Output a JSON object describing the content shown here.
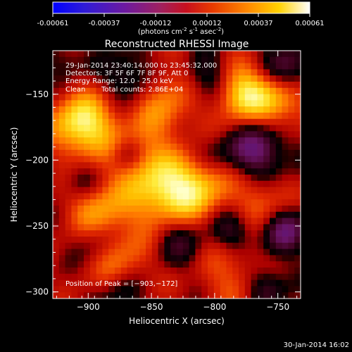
{
  "colorbar": {
    "ticks": [
      "-0.00061",
      "-0.00037",
      "-0.00012",
      "0.00012",
      "0.00037",
      "0.00061"
    ],
    "unit_main": "(photons cm",
    "unit_exp1": "-2",
    "unit_mid": " s",
    "unit_exp2": "-1",
    "unit_mid2": " asec",
    "unit_exp3": "-2",
    "unit_end": ")",
    "range": [
      -0.00061,
      0.00061
    ]
  },
  "chart_data": {
    "type": "heatmap",
    "title": "Reconstructed RHESSI Image",
    "xlabel": "Heliocentric X (arcsec)",
    "ylabel": "Heliocentric Y (arcsec)",
    "xlim": [
      -928,
      -732
    ],
    "ylim": [
      -305,
      -117
    ],
    "xticks": [
      -900,
      -850,
      -800,
      -750
    ],
    "yticks": [
      -150,
      -200,
      -250,
      -300
    ],
    "xtick_labels": [
      "−900",
      "−850",
      "−800",
      "−750"
    ],
    "ytick_labels": [
      "−150",
      "−200",
      "−250",
      "−300"
    ],
    "colormap": "RHESSI blue-purple-red-yellow-white",
    "annotations": {
      "time": "29-Jan-2014 23:40:14.000 to 23:45:32.000",
      "detectors": "Detectors: 3F 5F 6F 7F 8F 9F, Att 0",
      "energy": "Energy Range: 12.0 - 25.0 keV",
      "clean_label": "Clean",
      "counts": "Total counts: 2.86E+04",
      "peak": "Position of Peak = [−903,−172]"
    },
    "peak": [
      -903,
      -172
    ]
  },
  "footer": {
    "timestamp": "30-Jan-2014 16:02"
  }
}
